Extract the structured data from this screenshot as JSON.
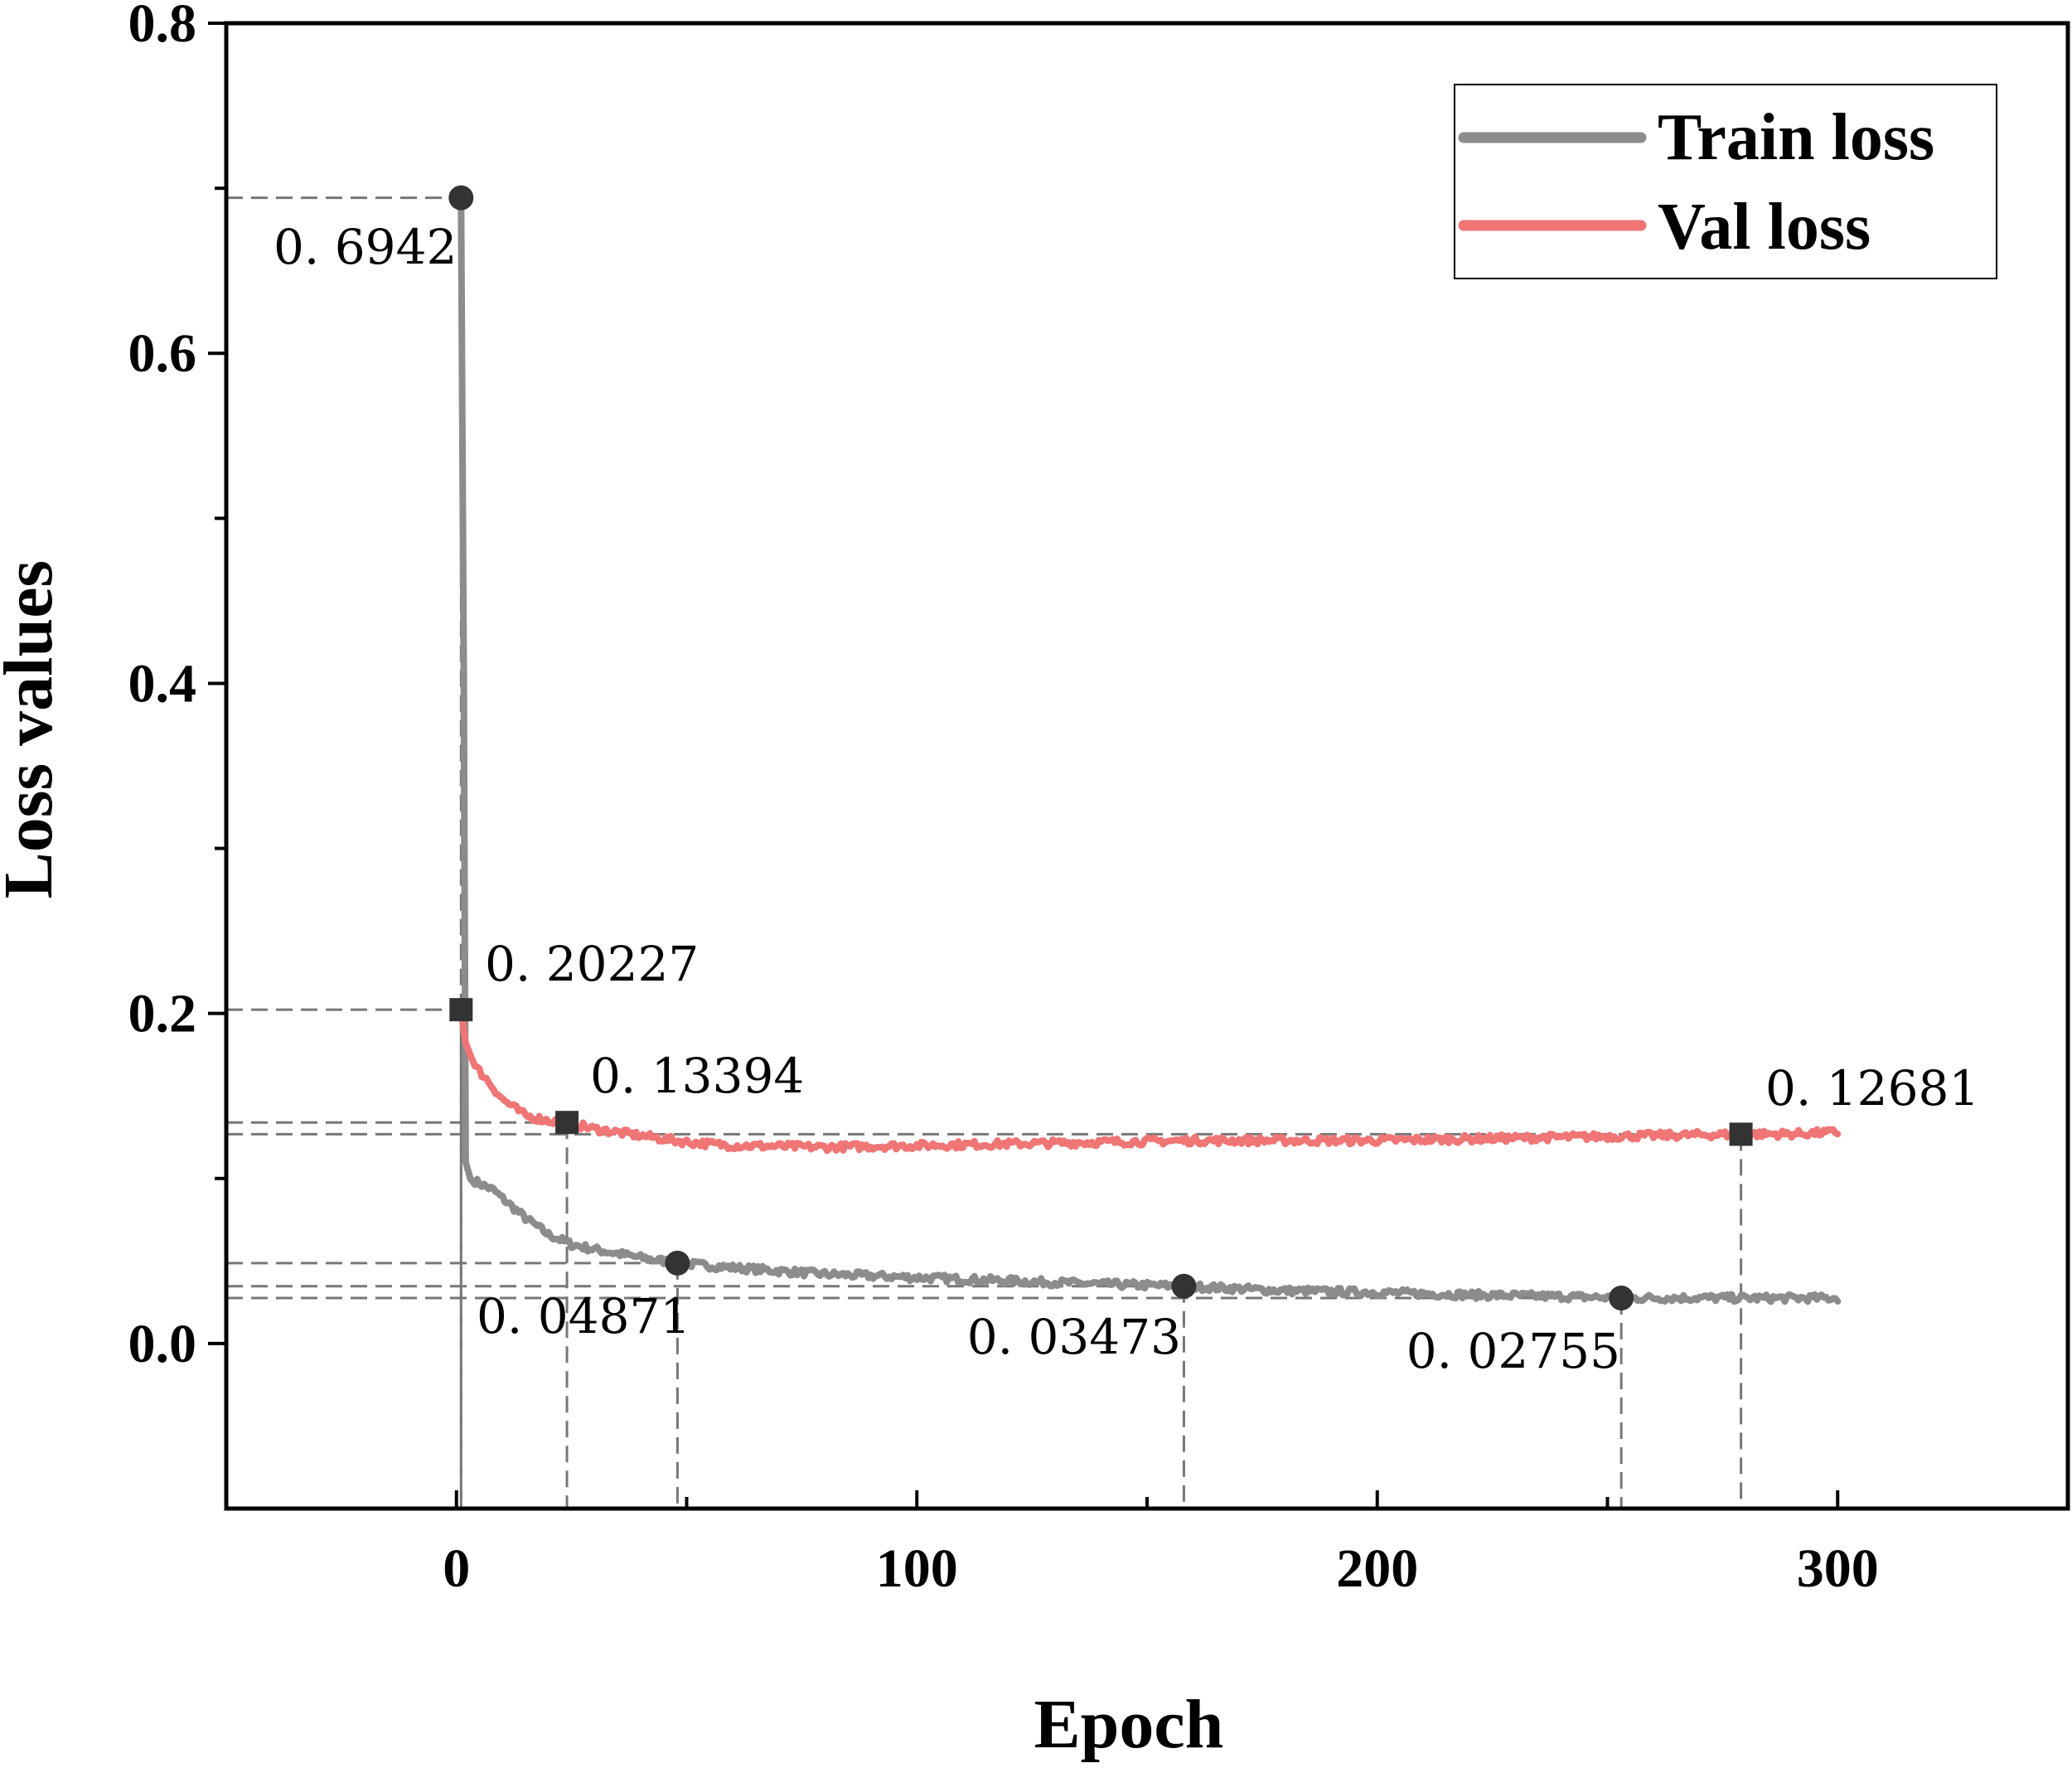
{
  "chart_data": {
    "type": "line",
    "xlabel": "Epoch",
    "ylabel": "Loss values",
    "xlim": [
      -50,
      350
    ],
    "ylim": [
      -0.1,
      0.8
    ],
    "x_ticks": [
      0,
      100,
      200,
      300
    ],
    "x_tick_labels": [
      "0",
      "100",
      "200",
      "300"
    ],
    "y_ticks": [
      0.0,
      0.2,
      0.4,
      0.6,
      0.8
    ],
    "y_tick_labels": [
      "0.0",
      "0.2",
      "0.4",
      "0.6",
      "0.8"
    ],
    "grid": false,
    "legend": "top-right",
    "series": [
      {
        "name": "Train loss",
        "color": "#8c8c8c",
        "x": [
          1,
          1.6,
          2,
          3,
          5,
          8,
          10,
          15,
          20,
          25,
          30,
          40,
          48,
          60,
          80,
          100,
          120,
          140,
          158,
          180,
          200,
          220,
          240,
          254,
          270,
          285,
          300
        ],
        "y": [
          0.6942,
          0.4,
          0.11,
          0.1,
          0.097,
          0.093,
          0.088,
          0.076,
          0.066,
          0.06,
          0.057,
          0.052,
          0.04871,
          0.046,
          0.042,
          0.04,
          0.038,
          0.036,
          0.03473,
          0.032,
          0.031,
          0.0295,
          0.0285,
          0.02755,
          0.0277,
          0.0275,
          0.0276
        ]
      },
      {
        "name": "Val loss",
        "color": "#f07575",
        "x": [
          1,
          2,
          4,
          6,
          8,
          10,
          15,
          20,
          24,
          30,
          40,
          50,
          60,
          80,
          100,
          120,
          140,
          160,
          180,
          200,
          220,
          240,
          260,
          279,
          290,
          300
        ],
        "y": [
          0.20227,
          0.182,
          0.168,
          0.162,
          0.155,
          0.148,
          0.138,
          0.135,
          0.13394,
          0.13,
          0.126,
          0.122,
          0.12,
          0.119,
          0.12,
          0.121,
          0.122,
          0.123,
          0.123,
          0.123,
          0.124,
          0.125,
          0.126,
          0.12681,
          0.127,
          0.128
        ]
      }
    ],
    "markers": [
      {
        "series": "Train loss",
        "shape": "circle",
        "x": 1,
        "y": 0.6942,
        "label": "0. 6942"
      },
      {
        "series": "Train loss",
        "shape": "circle",
        "x": 48,
        "y": 0.04871,
        "label": "0. 04871"
      },
      {
        "series": "Train loss",
        "shape": "circle",
        "x": 158,
        "y": 0.03473,
        "label": "0. 03473"
      },
      {
        "series": "Train loss",
        "shape": "circle",
        "x": 253,
        "y": 0.02755,
        "label": "0. 02755"
      },
      {
        "series": "Val loss",
        "shape": "square",
        "x": 1,
        "y": 0.20227,
        "label": "0. 20227"
      },
      {
        "series": "Val loss",
        "shape": "square",
        "x": 24,
        "y": 0.13394,
        "label": "0. 13394"
      },
      {
        "series": "Val loss",
        "shape": "square",
        "x": 279,
        "y": 0.12681,
        "label": "0. 12681"
      }
    ]
  }
}
